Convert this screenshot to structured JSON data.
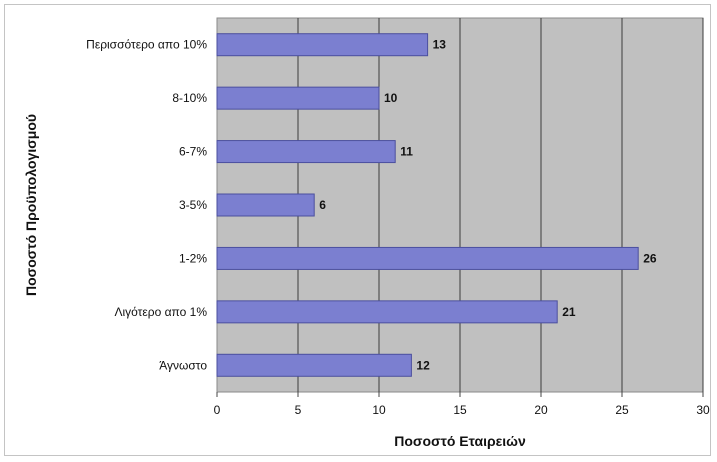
{
  "chart_data": {
    "type": "bar",
    "orientation": "horizontal",
    "categories": [
      "Περισσότερο απο 10%",
      "8-10%",
      "6-7%",
      "3-5%",
      "1-2%",
      "Λιγότερο απο 1%",
      "Άγνωστο"
    ],
    "values": [
      13,
      10,
      11,
      6,
      26,
      21,
      12
    ],
    "xlabel": "Ποσοστό Εταιρειών",
    "ylabel": "Ποσοστό Προϋπολογισμού",
    "xlim": [
      0,
      30
    ],
    "xticks": [
      0,
      5,
      10,
      15,
      20,
      25,
      30
    ],
    "grid": true,
    "colors": {
      "bar": "#7b7fd0",
      "bar_edge": "#4b4f9e",
      "plot_background": "#c0c0c0",
      "gridline": "#3c3c3c"
    }
  }
}
